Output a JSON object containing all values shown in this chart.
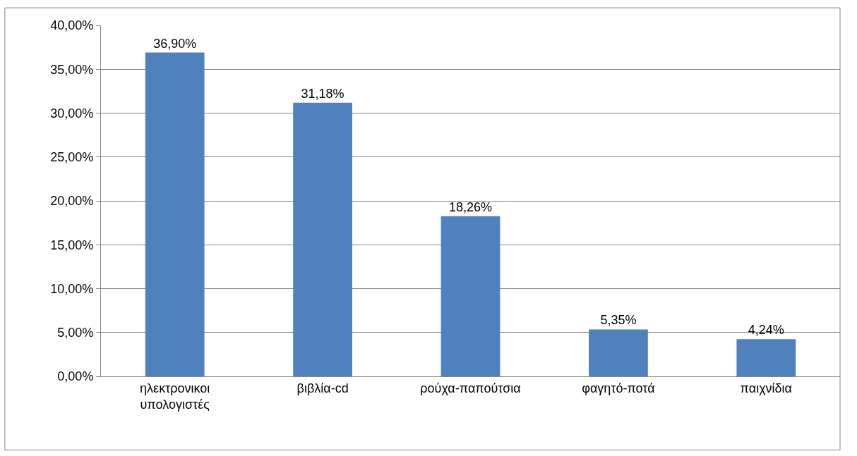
{
  "chart_data": {
    "type": "bar",
    "categories": [
      "ηλεκτρονικοι υπολογιστές",
      "βιβλία-cd",
      "ρούχα-παπούτσια",
      "φαγητό-ποτά",
      "παιχνίδια"
    ],
    "values": [
      36.9,
      31.18,
      18.26,
      5.35,
      4.24
    ],
    "value_labels": [
      "36,90%",
      "31,18%",
      "18,26%",
      "5,35%",
      "4,24%"
    ],
    "color": "#4f81bd",
    "ylim": [
      0,
      40
    ],
    "yticks": [
      {
        "value": 0,
        "label": "0,00%"
      },
      {
        "value": 5,
        "label": "5,00%"
      },
      {
        "value": 10,
        "label": "10,00%"
      },
      {
        "value": 15,
        "label": "15,00%"
      },
      {
        "value": 20,
        "label": "20,00%"
      },
      {
        "value": 25,
        "label": "25,00%"
      },
      {
        "value": 30,
        "label": "30,00%"
      },
      {
        "value": 35,
        "label": "35,00%"
      },
      {
        "value": 40,
        "label": "40,00%"
      }
    ],
    "grid": "y",
    "legend": false
  }
}
